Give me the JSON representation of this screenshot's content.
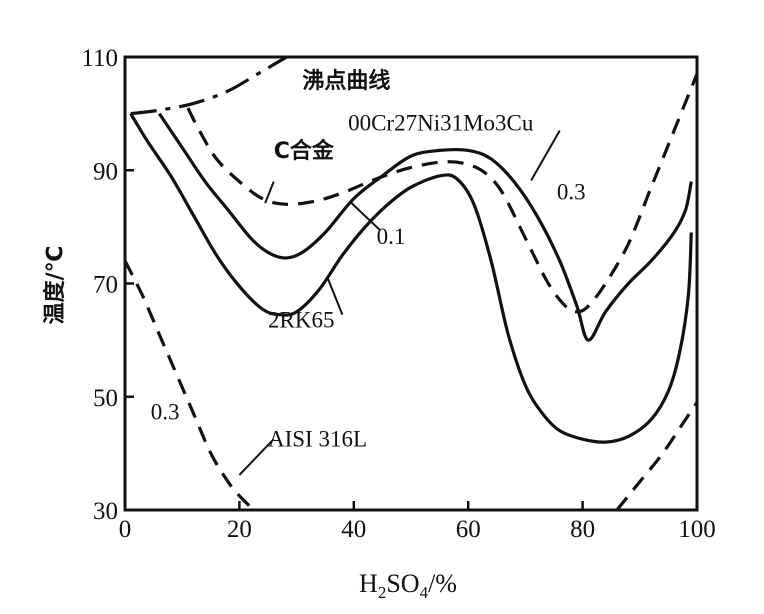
{
  "chart_data": {
    "type": "line",
    "ylabel": "温度/℃",
    "xlabel_parts": {
      "h": "H",
      "sub2": "2",
      "so": "SO",
      "sub4": "4",
      "unit": "/%"
    },
    "xlim": [
      0,
      100
    ],
    "ylim": [
      30,
      110
    ],
    "x_ticks": [
      "0",
      "20",
      "40",
      "60",
      "80",
      "100"
    ],
    "y_ticks": [
      "30",
      "50",
      "70",
      "90",
      "110"
    ],
    "grid": false,
    "series": [
      {
        "name": "沸点曲线",
        "style": "dashdot",
        "x": [
          1,
          6,
          12,
          18,
          24,
          30
        ],
        "y": [
          100,
          100.6,
          101.8,
          104,
          107.5,
          111
        ]
      },
      {
        "name": "C合金",
        "style": "dashed",
        "x": [
          11,
          13,
          16,
          20,
          24,
          28,
          33,
          38,
          44,
          50,
          56,
          60,
          63,
          66,
          70,
          74,
          77,
          79,
          81,
          84,
          88,
          92,
          96,
          100
        ],
        "y": [
          101,
          97,
          92,
          88,
          85,
          84,
          84.5,
          86,
          88.5,
          90.5,
          91.5,
          91,
          89.5,
          86,
          78,
          70,
          66,
          65,
          66,
          70,
          77,
          87,
          97,
          107
        ]
      },
      {
        "name": "00Cr27Ni31Mo3Cu",
        "style": "solid",
        "x": [
          6,
          10,
          14,
          18,
          22,
          25,
          28,
          31,
          35,
          40,
          45,
          50,
          55,
          60,
          64,
          68,
          72,
          76,
          79,
          81,
          84,
          88,
          92,
          96,
          98,
          99
        ],
        "y": [
          100,
          94,
          88,
          83,
          78,
          75.5,
          74.5,
          75.5,
          79,
          85,
          89,
          92.5,
          93.5,
          93.5,
          92,
          88,
          82,
          74,
          66,
          60,
          65,
          70,
          74,
          79,
          83,
          88
        ]
      },
      {
        "name": "2RK65",
        "style": "solid",
        "x": [
          1,
          4,
          8,
          12,
          16,
          20,
          24,
          27,
          30,
          34,
          38,
          42,
          46,
          50,
          55,
          58,
          61,
          64,
          67,
          70,
          73,
          76,
          80,
          84,
          88,
          92,
          95,
          97,
          98.5,
          99
        ],
        "y": [
          100,
          95,
          89,
          82,
          75,
          69.5,
          65.5,
          64.5,
          65,
          69,
          75,
          80,
          84,
          87,
          89,
          88.5,
          84,
          74,
          61,
          52,
          47,
          44,
          42.5,
          42,
          43,
          46,
          51,
          58,
          68,
          79
        ]
      },
      {
        "name": "AISI 316L",
        "style": "dashed",
        "x": [
          0,
          3,
          6,
          9,
          12,
          15,
          18,
          20,
          22,
          23
        ],
        "y": [
          74,
          68,
          61,
          54,
          47,
          40,
          35,
          32.5,
          30.5,
          29.5
        ]
      },
      {
        "name": "AISI 316L (high concentration branch)",
        "style": "dashed",
        "x": [
          86,
          90,
          94,
          98,
          100
        ],
        "y": [
          30,
          35,
          40,
          46,
          49
        ]
      }
    ],
    "annotations": [
      {
        "id": "boiling",
        "text": "沸点曲线",
        "x": 31,
        "y": 104.5
      },
      {
        "id": "c-alloy",
        "text": "C合金",
        "x": 26,
        "y": 92.2
      },
      {
        "id": "cr27",
        "text": "00Cr27Ni31Mo3Cu",
        "x": 39,
        "y": 97
      },
      {
        "id": "val-03-upper",
        "text": "0.3",
        "x": 75.5,
        "y": 84.8
      },
      {
        "id": "val-01",
        "text": "0.1",
        "x": 44,
        "y": 77
      },
      {
        "id": "rk65",
        "text": "2RK65",
        "x": 25,
        "y": 62.2
      },
      {
        "id": "val-03-lower",
        "text": "0.3",
        "x": 4.5,
        "y": 46
      },
      {
        "id": "aisi",
        "text": "AISI 316L",
        "x": 25,
        "y": 41.2
      }
    ],
    "leaders": [
      {
        "id": "c-alloy-leader",
        "x": [
          26,
          24.5
        ],
        "y": [
          88,
          84.2
        ]
      },
      {
        "id": "cr27-leader",
        "x": [
          76,
          71
        ],
        "y": [
          97,
          88.2
        ]
      },
      {
        "id": "val-01-leader",
        "x": [
          44.5,
          39.5
        ],
        "y": [
          79.5,
          84.3
        ]
      },
      {
        "id": "rk65-leader",
        "x": [
          38,
          35.5
        ],
        "y": [
          64.5,
          70.8
        ]
      },
      {
        "id": "aisi-leader",
        "x": [
          26,
          20
        ],
        "y": [
          42.5,
          36.2
        ]
      }
    ]
  }
}
